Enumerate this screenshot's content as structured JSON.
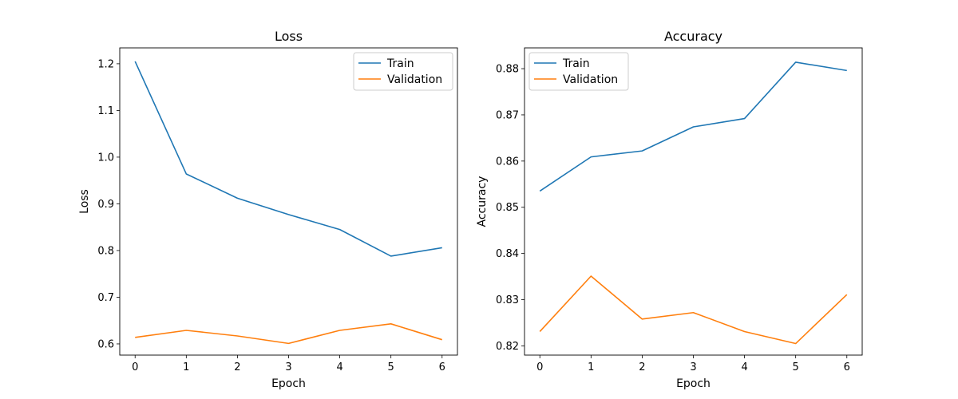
{
  "chart_data": [
    {
      "type": "line",
      "title": "Loss",
      "xlabel": "Epoch",
      "ylabel": "Loss",
      "x": [
        0,
        1,
        2,
        3,
        4,
        5,
        6
      ],
      "xlim": [
        -0.3,
        6.3
      ],
      "ylim": [
        0.576,
        1.234
      ],
      "xticks": [
        0,
        1,
        2,
        3,
        4,
        5,
        6
      ],
      "xtick_labels": [
        "0",
        "1",
        "2",
        "3",
        "4",
        "5",
        "6"
      ],
      "yticks": [
        0.6,
        0.7,
        0.8,
        0.9,
        1.0,
        1.1,
        1.2
      ],
      "ytick_labels": [
        "0.6",
        "0.7",
        "0.8",
        "0.9",
        "1.0",
        "1.1",
        "1.2"
      ],
      "grid": false,
      "legend_position": "upper right",
      "series": [
        {
          "name": "Train",
          "color": "#1f77b4",
          "values": [
            1.205,
            0.964,
            0.912,
            0.877,
            0.845,
            0.788,
            0.806
          ]
        },
        {
          "name": "Validation",
          "color": "#ff7f0e",
          "values": [
            0.614,
            0.629,
            0.617,
            0.601,
            0.629,
            0.643,
            0.609
          ]
        }
      ]
    },
    {
      "type": "line",
      "title": "Accuracy",
      "xlabel": "Epoch",
      "ylabel": "Accuracy",
      "x": [
        0,
        1,
        2,
        3,
        4,
        5,
        6
      ],
      "xlim": [
        -0.3,
        6.3
      ],
      "ylim": [
        0.818,
        0.8845
      ],
      "xticks": [
        0,
        1,
        2,
        3,
        4,
        5,
        6
      ],
      "xtick_labels": [
        "0",
        "1",
        "2",
        "3",
        "4",
        "5",
        "6"
      ],
      "yticks": [
        0.82,
        0.83,
        0.84,
        0.85,
        0.86,
        0.87,
        0.88
      ],
      "ytick_labels": [
        "0.82",
        "0.83",
        "0.84",
        "0.85",
        "0.86",
        "0.87",
        "0.88"
      ],
      "grid": false,
      "legend_position": "upper left",
      "series": [
        {
          "name": "Train",
          "color": "#1f77b4",
          "values": [
            0.8535,
            0.8609,
            0.8622,
            0.8674,
            0.8692,
            0.8814,
            0.8796
          ]
        },
        {
          "name": "Validation",
          "color": "#ff7f0e",
          "values": [
            0.8231,
            0.8351,
            0.8258,
            0.8272,
            0.8231,
            0.8205,
            0.8311
          ]
        }
      ]
    }
  ]
}
